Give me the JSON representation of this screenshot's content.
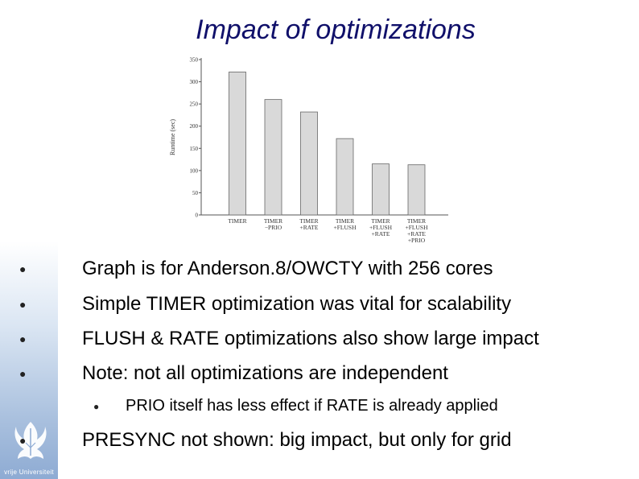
{
  "slide": {
    "title": "Impact of optimizations",
    "logo_text": "vrije Universiteit",
    "bullet_char": "●"
  },
  "bullets": [
    "Graph is for Anderson.8/OWCTY with 256 cores",
    "Simple TIMER optimization was vital for scalability",
    "FLUSH & RATE optimizations also show large impact",
    "Note: not all optimizations are independent",
    "PRESYNC not shown: big impact, but only for grid"
  ],
  "sub_bullets": [
    "PRIO itself has less effect if RATE is already applied"
  ],
  "colors": {
    "title": "#10106a",
    "bar_fill": "#d9d9d9",
    "bar_stroke": "#666666"
  },
  "chart_data": {
    "type": "bar",
    "ylabel": "Runtime (sec)",
    "xlabel": "",
    "ylim": [
      0,
      350
    ],
    "yticks": [
      0,
      50,
      100,
      150,
      200,
      250,
      300,
      350
    ],
    "grid": false,
    "categories": [
      [
        "TIMER"
      ],
      [
        "TIMER",
        "−PRIO"
      ],
      [
        "TIMER",
        "+RATE"
      ],
      [
        "TIMER",
        "+FLUSH"
      ],
      [
        "TIMER",
        "+FLUSH",
        "+RATE"
      ],
      [
        "TIMER",
        "+FLUSH",
        "+RATE",
        "+PRIO"
      ]
    ],
    "values": [
      322,
      260,
      232,
      172,
      115,
      113
    ]
  }
}
